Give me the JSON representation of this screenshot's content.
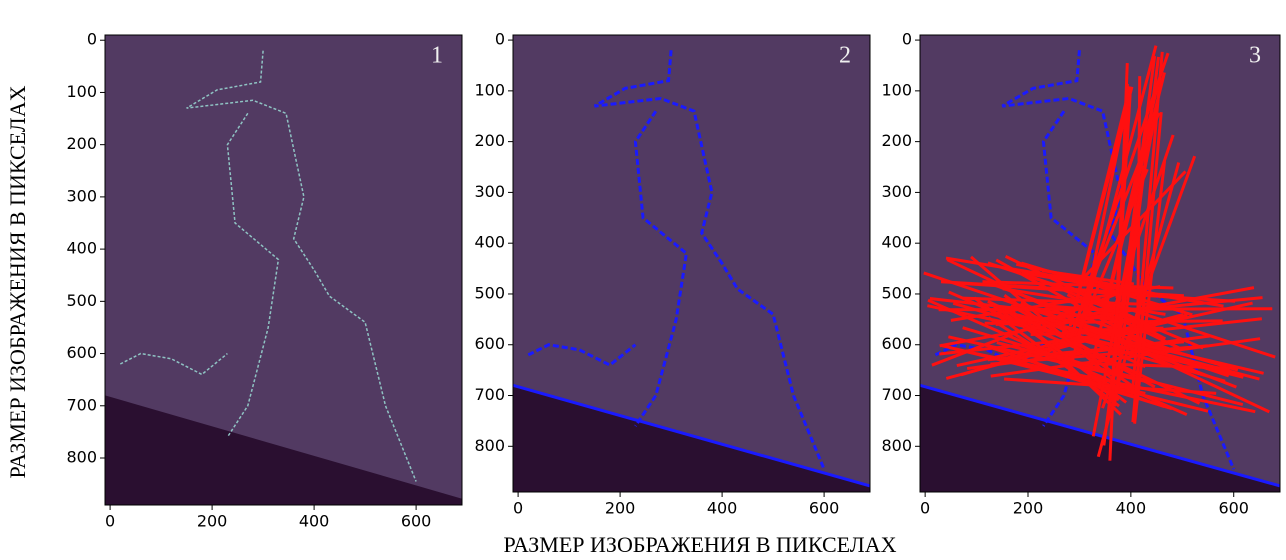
{
  "figure": {
    "xlabel": "РАЗМЕР ИЗОБРАЖЕНИЯ В ПИКСЕЛАХ",
    "ylabel": "РАЗМЕР ИЗОБРАЖЕНИЯ В ПИКСЕЛАХ"
  },
  "chart_data": [
    {
      "type": "image",
      "label": "1",
      "xlim": [
        -10,
        690
      ],
      "ylim": [
        890,
        -10
      ],
      "xticks": [
        0,
        200,
        400,
        600
      ],
      "yticks": [
        0,
        100,
        200,
        300,
        400,
        500,
        600,
        700,
        800
      ]
    },
    {
      "type": "image",
      "label": "2",
      "xlim": [
        -10,
        690
      ],
      "ylim": [
        890,
        -10
      ],
      "xticks": [
        0,
        200,
        400,
        600
      ],
      "yticks": [
        0,
        100,
        200,
        300,
        400,
        500,
        600,
        700,
        800
      ]
    },
    {
      "type": "image",
      "label": "3",
      "xlim": [
        -10,
        690
      ],
      "ylim": [
        890,
        -10
      ],
      "xticks": [
        0,
        200,
        400,
        600
      ],
      "yticks": [
        0,
        100,
        200,
        300,
        400,
        500,
        600,
        700,
        800
      ]
    }
  ]
}
